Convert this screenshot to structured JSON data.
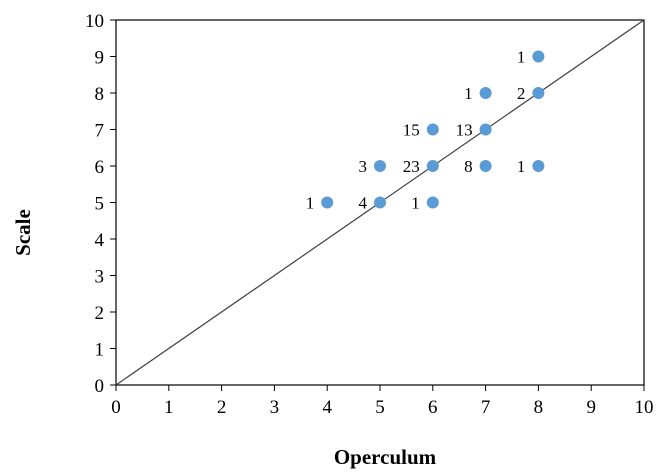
{
  "chart_data": {
    "type": "scatter",
    "title": "",
    "xlabel": "Operculum",
    "ylabel": "Scale",
    "xlim": [
      0,
      10
    ],
    "ylim": [
      0,
      10
    ],
    "xticks": [
      0,
      1,
      2,
      3,
      4,
      5,
      6,
      7,
      8,
      9,
      10
    ],
    "yticks": [
      0,
      1,
      2,
      3,
      4,
      5,
      6,
      7,
      8,
      9,
      10
    ],
    "grid": false,
    "legend": "none",
    "reference_line": {
      "from": [
        0,
        0
      ],
      "to": [
        10,
        10
      ],
      "color": "#404040"
    },
    "marker_color": "#5B9BD5",
    "series": [
      {
        "points": [
          {
            "x": 4,
            "y": 5,
            "label": "1"
          },
          {
            "x": 5,
            "y": 5,
            "label": "4"
          },
          {
            "x": 6,
            "y": 5,
            "label": "1"
          },
          {
            "x": 5,
            "y": 6,
            "label": "3"
          },
          {
            "x": 6,
            "y": 6,
            "label": "23"
          },
          {
            "x": 7,
            "y": 6,
            "label": "8"
          },
          {
            "x": 8,
            "y": 6,
            "label": "1"
          },
          {
            "x": 6,
            "y": 7,
            "label": "15"
          },
          {
            "x": 7,
            "y": 7,
            "label": "13"
          },
          {
            "x": 7,
            "y": 8,
            "label": "1"
          },
          {
            "x": 8,
            "y": 8,
            "label": "2"
          },
          {
            "x": 8,
            "y": 9,
            "label": "1"
          }
        ]
      }
    ]
  }
}
